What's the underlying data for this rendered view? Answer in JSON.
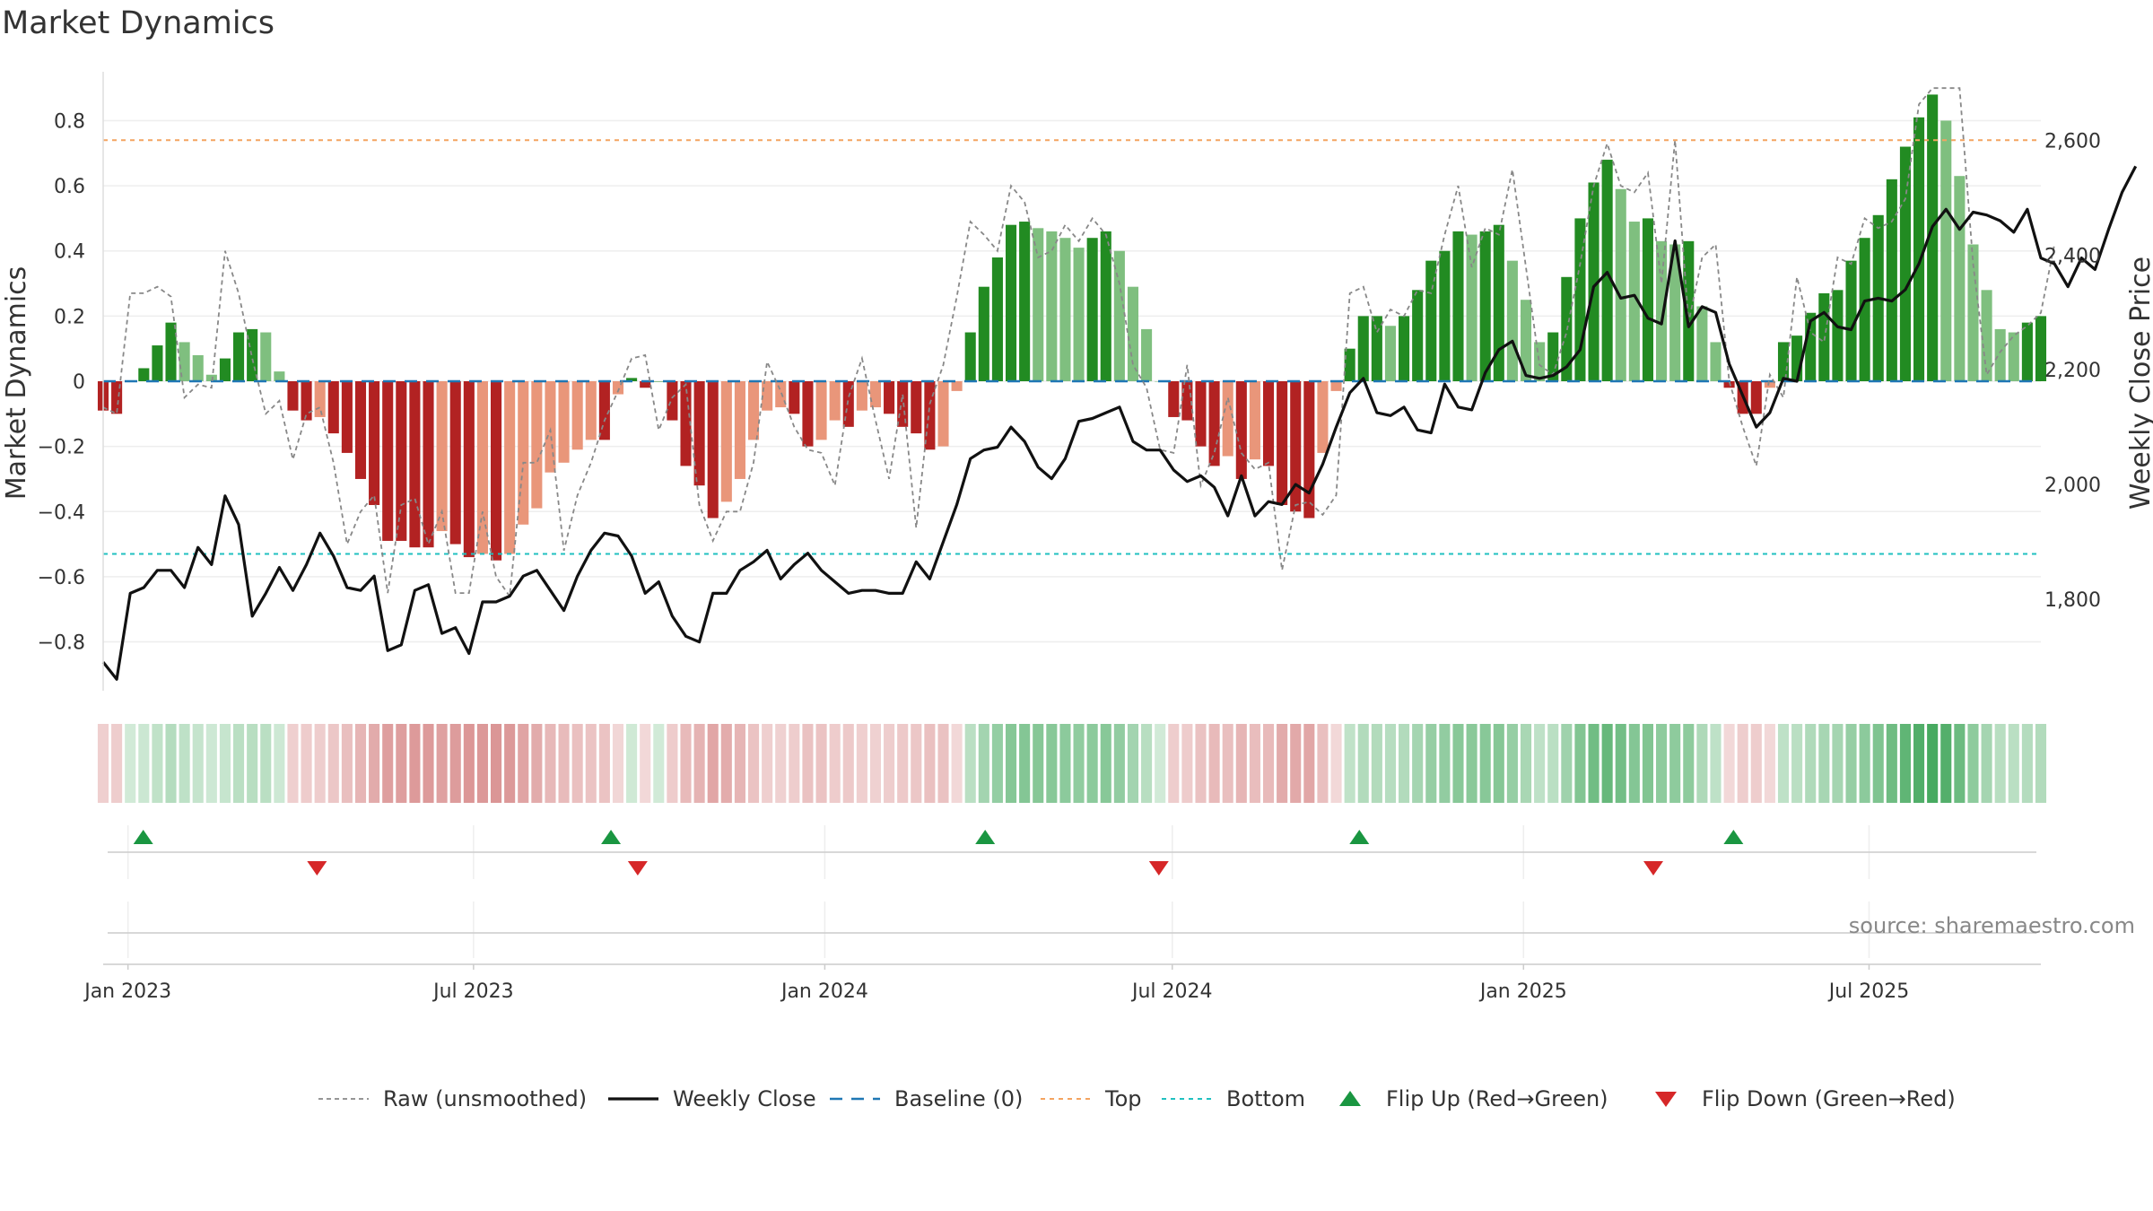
{
  "chart_data": {
    "type": "bar",
    "title": "Market Dynamics",
    "ylabel": "Market Dynamics",
    "y2label": "Weekly Close Price",
    "ylim": [
      -0.95,
      0.95
    ],
    "y2lim": [
      1640,
      2720
    ],
    "yticks": [
      -0.8,
      -0.6,
      -0.4,
      -0.2,
      0,
      0.2,
      0.4,
      0.6,
      0.8
    ],
    "yticklabels": [
      "−0.8",
      "−0.6",
      "−0.4",
      "−0.2",
      "0",
      "0.2",
      "0.4",
      "0.6",
      "0.8"
    ],
    "y2ticks": [
      1800,
      2000,
      2200,
      2400,
      2600
    ],
    "y2ticklabels": [
      "1,800",
      "2,000",
      "2,200",
      "2,400",
      "2,600"
    ],
    "xticks": [
      "2023-01-01",
      "2023-07-01",
      "2024-01-01",
      "2024-07-01",
      "2025-01-01",
      "2025-07-01"
    ],
    "xticklabels": [
      "Jan 2023",
      "Jul 2023",
      "Jan 2024",
      "Jul 2024",
      "Jan 2025",
      "Jul 2025"
    ],
    "top_level": 0.74,
    "bottom_level": -0.53,
    "baseline": 0,
    "start_date": "2022-12-19",
    "end_date": "2025-09-29",
    "series": [
      {
        "name": "Market Dynamics",
        "values": [
          -0.09,
          -0.1,
          0.0,
          0.04,
          0.11,
          0.18,
          0.12,
          0.08,
          0.02,
          0.07,
          0.15,
          0.16,
          0.15,
          0.03,
          -0.09,
          -0.12,
          -0.11,
          -0.16,
          -0.22,
          -0.3,
          -0.38,
          -0.49,
          -0.49,
          -0.51,
          -0.51,
          -0.46,
          -0.5,
          -0.54,
          -0.53,
          -0.55,
          -0.53,
          -0.44,
          -0.39,
          -0.28,
          -0.25,
          -0.21,
          -0.18,
          -0.18,
          -0.04,
          0.01,
          -0.02,
          0.0,
          -0.12,
          -0.26,
          -0.32,
          -0.42,
          -0.37,
          -0.3,
          -0.18,
          -0.09,
          -0.08,
          -0.1,
          -0.2,
          -0.18,
          -0.12,
          -0.14,
          -0.09,
          -0.08,
          -0.1,
          -0.14,
          -0.16,
          -0.21,
          -0.2,
          -0.03,
          0.15,
          0.29,
          0.38,
          0.48,
          0.49,
          0.47,
          0.46,
          0.44,
          0.41,
          0.44,
          0.46,
          0.4,
          0.29,
          0.16,
          0.0,
          -0.11,
          -0.12,
          -0.2,
          -0.26,
          -0.23,
          -0.3,
          -0.24,
          -0.26,
          -0.38,
          -0.4,
          -0.42,
          -0.22,
          -0.03,
          0.1,
          0.2,
          0.2,
          0.17,
          0.2,
          0.28,
          0.37,
          0.4,
          0.46,
          0.45,
          0.46,
          0.48,
          0.37,
          0.25,
          0.12,
          0.15,
          0.32,
          0.5,
          0.61,
          0.68,
          0.59,
          0.49,
          0.5,
          0.43,
          0.42,
          0.43,
          0.23,
          0.12,
          -0.02,
          -0.1,
          -0.1,
          -0.02,
          0.12,
          0.14,
          0.21,
          0.27,
          0.28,
          0.37,
          0.44,
          0.51,
          0.62,
          0.72,
          0.81,
          0.88,
          0.8,
          0.63,
          0.42,
          0.28,
          0.16,
          0.15,
          0.18,
          0.2
        ]
      },
      {
        "name": "Raw (unsmoothed)",
        "values": [
          -0.08,
          -0.1,
          0.27,
          0.27,
          0.29,
          0.26,
          -0.05,
          -0.01,
          -0.02,
          0.4,
          0.27,
          0.07,
          -0.1,
          -0.06,
          -0.24,
          -0.1,
          -0.08,
          -0.25,
          -0.5,
          -0.4,
          -0.35,
          -0.65,
          -0.38,
          -0.36,
          -0.5,
          -0.4,
          -0.65,
          -0.65,
          -0.4,
          -0.6,
          -0.66,
          -0.25,
          -0.25,
          -0.15,
          -0.52,
          -0.35,
          -0.25,
          -0.12,
          -0.03,
          0.07,
          0.08,
          -0.15,
          -0.05,
          -0.01,
          -0.38,
          -0.49,
          -0.4,
          -0.4,
          -0.25,
          0.06,
          -0.03,
          -0.14,
          -0.21,
          -0.22,
          -0.32,
          -0.05,
          0.07,
          -0.12,
          -0.3,
          -0.04,
          -0.45,
          -0.07,
          0.05,
          0.26,
          0.49,
          0.45,
          0.4,
          0.6,
          0.55,
          0.38,
          0.4,
          0.48,
          0.43,
          0.5,
          0.45,
          0.3,
          0.05,
          -0.02,
          -0.21,
          -0.22,
          0.05,
          -0.32,
          -0.22,
          -0.05,
          -0.22,
          -0.27,
          -0.25,
          -0.58,
          -0.38,
          -0.37,
          -0.41,
          -0.35,
          0.27,
          0.29,
          0.15,
          0.22,
          0.2,
          0.28,
          0.27,
          0.45,
          0.6,
          0.35,
          0.47,
          0.45,
          0.65,
          0.35,
          0.05,
          0.02,
          0.15,
          0.36,
          0.6,
          0.73,
          0.6,
          0.58,
          0.64,
          0.3,
          0.74,
          0.18,
          0.38,
          0.42,
          0.0,
          -0.14,
          -0.26,
          0.02,
          -0.05,
          0.32,
          0.15,
          0.12,
          0.38,
          0.36,
          0.5,
          0.47,
          0.49,
          0.56,
          0.85,
          0.9,
          0.9,
          0.9,
          0.36,
          0.02,
          0.09,
          0.14,
          0.17,
          0.21,
          0.42
        ]
      },
      {
        "name": "Weekly Close",
        "values": [
          1690,
          1660,
          1810,
          1820,
          1850,
          1850,
          1820,
          1890,
          1860,
          1980,
          1930,
          1770,
          1810,
          1855,
          1815,
          1860,
          1915,
          1875,
          1820,
          1815,
          1840,
          1710,
          1720,
          1815,
          1825,
          1740,
          1750,
          1705,
          1795,
          1795,
          1805,
          1840,
          1850,
          1815,
          1780,
          1840,
          1885,
          1915,
          1910,
          1875,
          1810,
          1830,
          1770,
          1735,
          1725,
          1810,
          1810,
          1850,
          1865,
          1885,
          1835,
          1860,
          1880,
          1850,
          1830,
          1810,
          1815,
          1815,
          1810,
          1810,
          1865,
          1835,
          1900,
          1965,
          2045,
          2060,
          2065,
          2100,
          2075,
          2030,
          2010,
          2045,
          2110,
          2115,
          2125,
          2135,
          2075,
          2060,
          2060,
          2025,
          2005,
          2015,
          1995,
          1945,
          2015,
          1945,
          1970,
          1965,
          2000,
          1985,
          2035,
          2100,
          2160,
          2185,
          2125,
          2120,
          2135,
          2095,
          2090,
          2175,
          2135,
          2130,
          2195,
          2235,
          2250,
          2190,
          2185,
          2190,
          2205,
          2235,
          2345,
          2370,
          2325,
          2330,
          2290,
          2280,
          2425,
          2275,
          2310,
          2300,
          2210,
          2155,
          2100,
          2125,
          2185,
          2180,
          2285,
          2300,
          2275,
          2270,
          2320,
          2325,
          2320,
          2340,
          2385,
          2450,
          2480,
          2445,
          2475,
          2470,
          2460,
          2440,
          2480,
          2395,
          2385,
          2345,
          2395,
          2375,
          2445,
          2510,
          2555
        ]
      }
    ],
    "legend": [
      "Raw (unsmoothed)",
      "Weekly Close",
      "Baseline (0)",
      "Top",
      "Bottom",
      "Flip Up (Red→Green)",
      "Flip Down (Green→Red)"
    ],
    "legend_position": "bottom",
    "flip_up_dates": [
      "2023-01-09",
      "2023-09-11",
      "2024-03-25",
      "2024-10-07",
      "2025-04-21"
    ],
    "flip_down_dates": [
      "2023-04-10",
      "2023-09-25",
      "2024-06-24",
      "2025-03-10"
    ],
    "source": "source: sharemaestro.com",
    "grid": true,
    "colors": {
      "dark_green": "#228b22",
      "light_green": "#7fbf7f",
      "dark_red": "#b22222",
      "light_red": "#e9967a",
      "raw": "#888888",
      "close": "#111111",
      "baseline": "#1f77b4",
      "top": "#f4a460",
      "bottom": "#20c0c0",
      "flip_up": "#1a9641",
      "flip_down": "#d62728"
    }
  }
}
